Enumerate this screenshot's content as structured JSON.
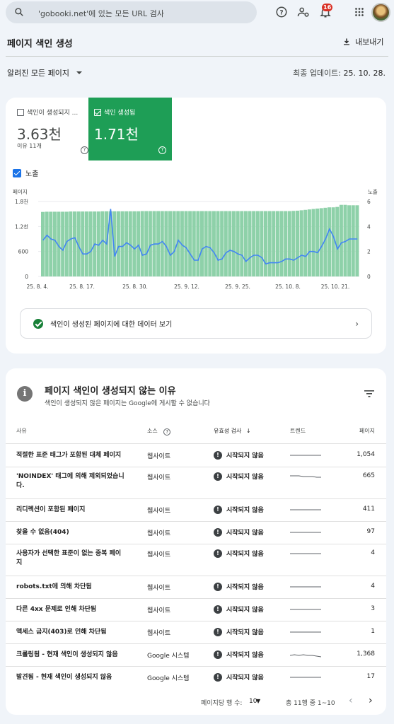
{
  "header": {
    "search_placeholder": "'gobooki.net'에 있는 모든 URL 검사",
    "notification_count": "16",
    "icons": [
      "search-icon",
      "help-icon",
      "manage-accounts-icon",
      "notifications-icon",
      "apps-icon"
    ]
  },
  "page": {
    "title": "페이지 색인 생성",
    "export_label": "내보내기",
    "filter_label": "알려진 모든 페이지",
    "updated_label": "최종 업데이트:",
    "updated_value": "25. 10. 28."
  },
  "summary": {
    "not_indexed_label": "색인이 생성되지 ...",
    "not_indexed_value": "3.63천",
    "not_indexed_sub": "이유 11개",
    "indexed_label": "색인 생성됨",
    "indexed_value": "1.71천",
    "impressions_label": "노출",
    "view_data_label": "색인이 생성된 페이지에 대한 데이터 보기",
    "accent": "#1e9e56",
    "bar_color": "#8ed1a9",
    "line_color": "#4285f4"
  },
  "chart_data": {
    "type": "bar",
    "left_axis_title": "페이지",
    "right_axis_title": "노출",
    "left_ticks": [
      "0",
      "600",
      "1.2천",
      "1.8천"
    ],
    "right_ticks": [
      "0",
      "2",
      "4",
      "6"
    ],
    "ylim_left": [
      0,
      1800
    ],
    "ylim_right": [
      0,
      6
    ],
    "x_ticks": [
      "25. 8. 4.",
      "25. 8. 17.",
      "25. 8. 30.",
      "25. 9. 12.",
      "25. 9. 25.",
      "25. 10. 8.",
      "25. 10. 21."
    ],
    "series": [
      {
        "name": "색인 생성됨",
        "values": [
          1550,
          1555,
          1555,
          1555,
          1555,
          1555,
          1555,
          1560,
          1560,
          1560,
          1560,
          1560,
          1560,
          1560,
          1560,
          1565,
          1565,
          1565,
          1565,
          1565,
          1565,
          1565,
          1565,
          1565,
          1565,
          1570,
          1570,
          1570,
          1570,
          1570,
          1570,
          1570,
          1570,
          1570,
          1570,
          1570,
          1570,
          1570,
          1570,
          1570,
          1570,
          1570,
          1570,
          1570,
          1570,
          1570,
          1570,
          1570,
          1570,
          1570,
          1570,
          1570,
          1570,
          1570,
          1570,
          1570,
          1570,
          1570,
          1570,
          1570,
          1570,
          1570,
          1570,
          1575,
          1580,
          1590,
          1600,
          1610,
          1620,
          1630,
          1640,
          1650,
          1660,
          1660,
          1670,
          1720,
          1720,
          1710,
          1710,
          1710
        ]
      },
      {
        "name": "노출",
        "values": [
          2.9,
          3.3,
          3.0,
          2.9,
          2.4,
          2.1,
          2.8,
          3.0,
          3.1,
          2.4,
          1.8,
          1.8,
          2.0,
          2.6,
          2.5,
          2.9,
          2.6,
          5.4,
          1.6,
          2.4,
          2.4,
          2.7,
          2.5,
          2.2,
          2.5,
          1.7,
          1.8,
          2.5,
          2.6,
          2.6,
          2.8,
          2.4,
          1.7,
          2.0,
          2.9,
          2.5,
          2.3,
          1.8,
          1.3,
          1.3,
          2.2,
          2.4,
          2.3,
          1.9,
          1.3,
          1.4,
          1.9,
          2.1,
          2.0,
          1.8,
          1.7,
          1.2,
          1.5,
          1.7,
          1.7,
          1.5,
          1.0,
          1.1,
          1.1,
          1.1,
          1.2,
          1.4,
          1.4,
          1.3,
          1.5,
          1.7,
          1.6,
          2.0,
          2.0,
          1.9,
          2.4,
          3.0,
          3.8,
          3.2,
          2.2,
          2.7,
          2.8,
          3.0,
          3.0,
          3.0
        ]
      }
    ]
  },
  "reasons": {
    "title": "페이지 색인이 생성되지 않는 이유",
    "subtitle": "색인이 생성되지 않은 페이지는 Google에 게시할 수 없습니다",
    "columns": [
      "사유",
      "소스",
      "유효성 검사",
      "트렌드",
      "페이지"
    ],
    "rows": [
      {
        "name": "적절한 표준 태그가 포함된 대체 페이지",
        "source": "웹사이트",
        "status": "시작되지 않음",
        "pages": "1,054",
        "trend": [
          5,
          5,
          5,
          5,
          5,
          5,
          5,
          5
        ]
      },
      {
        "name": "'NOINDEX' 태그에 의해 제외되었습니다.",
        "source": "웹사이트",
        "status": "시작되지 않음",
        "pages": "665",
        "trend": [
          6,
          6,
          6,
          5,
          5,
          5,
          4,
          4
        ]
      },
      {
        "name": "리디렉션이 포함된 페이지",
        "source": "웹사이트",
        "status": "시작되지 않음",
        "pages": "411",
        "trend": [
          5,
          5,
          5,
          5,
          5,
          5,
          5,
          5
        ]
      },
      {
        "name": "찾을 수 없음(404)",
        "source": "웹사이트",
        "status": "시작되지 않음",
        "pages": "97",
        "trend": [
          5,
          5,
          5,
          5,
          5,
          5,
          5,
          5
        ]
      },
      {
        "name": "사용자가 선택한 표준이 없는 중복 페이지",
        "source": "웹사이트",
        "status": "시작되지 않음",
        "pages": "4",
        "trend": [
          5,
          5,
          5,
          5,
          5,
          5,
          5,
          5
        ]
      },
      {
        "name": "robots.txt에 의해 차단됨",
        "source": "웹사이트",
        "status": "시작되지 않음",
        "pages": "4",
        "trend": [
          5,
          5,
          5,
          5,
          5,
          5,
          5,
          5
        ]
      },
      {
        "name": "다른 4xx 문제로 인해 차단됨",
        "source": "웹사이트",
        "status": "시작되지 않음",
        "pages": "3",
        "trend": [
          5,
          5,
          5,
          5,
          5,
          5,
          5,
          5
        ]
      },
      {
        "name": "액세스 금지(403)로 인해 차단됨",
        "source": "웹사이트",
        "status": "시작되지 않음",
        "pages": "1",
        "trend": [
          5,
          5,
          5,
          5,
          5,
          5,
          5,
          5
        ]
      },
      {
        "name": "크롤링됨 - 현재 색인이 생성되지 않음",
        "source": "Google 시스템",
        "status": "시작되지 않음",
        "pages": "1,368",
        "trend": [
          4,
          5,
          4,
          5,
          4,
          4,
          3,
          2
        ]
      },
      {
        "name": "발견됨 - 현재 색인이 생성되지 않음",
        "source": "Google 시스템",
        "status": "시작되지 않음",
        "pages": "17",
        "trend": [
          5,
          5,
          5,
          5,
          5,
          5,
          5,
          5
        ]
      }
    ],
    "rows_per_page_label": "페이지당 행 수:",
    "rows_per_page_value": "10",
    "range_label": "총 11행 중 1~10"
  }
}
